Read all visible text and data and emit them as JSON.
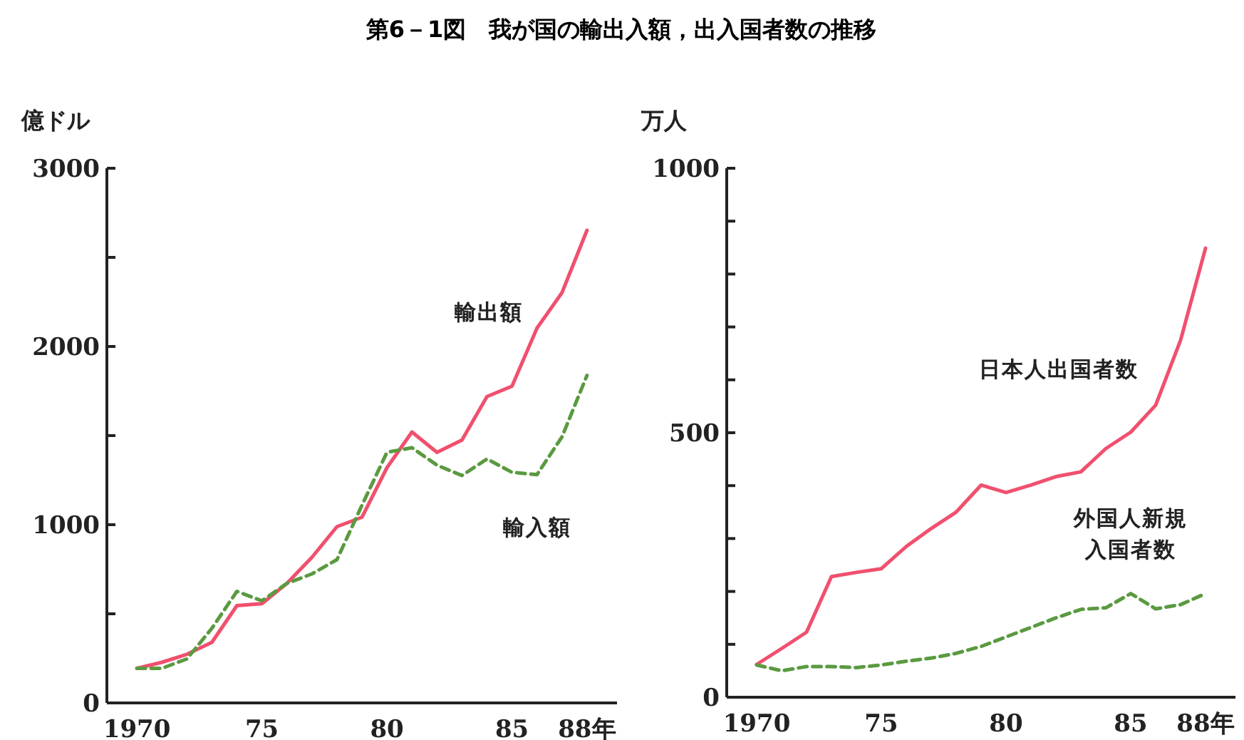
{
  "chart_data": [
    {
      "type": "line",
      "title": "第6－1図　我が国の輸出入額，出入国者数の推移",
      "ylabel": "億ドル",
      "legend": false,
      "grid": false,
      "marker": "none",
      "categories": [
        "1970",
        null,
        null,
        null,
        null,
        "75",
        null,
        null,
        null,
        null,
        "80",
        null,
        null,
        null,
        null,
        "85",
        null,
        null,
        "88年"
      ],
      "ylim": [
        0,
        3000
      ],
      "yticks": [
        0,
        {
          "value": 500,
          "label": null
        },
        1000,
        {
          "value": 1500,
          "label": null
        },
        2000,
        {
          "value": 2500,
          "label": null
        },
        3000
      ],
      "series": [
        {
          "name": "輸出額",
          "color": "#f0506e",
          "line_style": "solid",
          "values": [
            194,
            228,
            273,
            340,
            546,
            557,
            671,
            817,
            989,
            1042,
            1320,
            1520,
            1406,
            1475,
            1719,
            1777,
            2103,
            2302,
            2652
          ]
        },
        {
          "name": "輸入額",
          "color": "#5a9a40",
          "line_style": "dashed",
          "values": [
            194,
            194,
            247,
            419,
            626,
            573,
            671,
            724,
            804,
            1109,
            1406,
            1432,
            1334,
            1276,
            1369,
            1294,
            1281,
            1493,
            1838
          ]
        }
      ]
    },
    {
      "type": "line",
      "ylabel": "万人",
      "legend": false,
      "grid": false,
      "marker": "none",
      "categories": [
        "1970",
        null,
        null,
        null,
        null,
        "75",
        null,
        null,
        null,
        null,
        "80",
        null,
        null,
        null,
        null,
        "85",
        null,
        null,
        "88年"
      ],
      "ylim": [
        0,
        1000
      ],
      "yticks": [
        0,
        {
          "value": 100,
          "label": null
        },
        {
          "value": 200,
          "label": null
        },
        {
          "value": 300,
          "label": null
        },
        {
          "value": 400,
          "label": null
        },
        500,
        {
          "value": 600,
          "label": null
        },
        {
          "value": 700,
          "label": null
        },
        {
          "value": 800,
          "label": null
        },
        {
          "value": 900,
          "label": null
        },
        1000
      ],
      "series": [
        {
          "name": "日本人出国者数",
          "color": "#f0506e",
          "line_style": "solid",
          "values": [
            62,
            92,
            123,
            228,
            236,
            243,
            285,
            319,
            350,
            401,
            387,
            401,
            417,
            426,
            470,
            501,
            552,
            675,
            849
          ]
        },
        {
          "name": "外国人新規入国者数",
          "color": "#5a9a40",
          "line_style": "dashed",
          "values": [
            61,
            50,
            58,
            58,
            56,
            61,
            68,
            74,
            83,
            96,
            114,
            132,
            150,
            166,
            169,
            196,
            167,
            175,
            196
          ]
        }
      ]
    }
  ]
}
